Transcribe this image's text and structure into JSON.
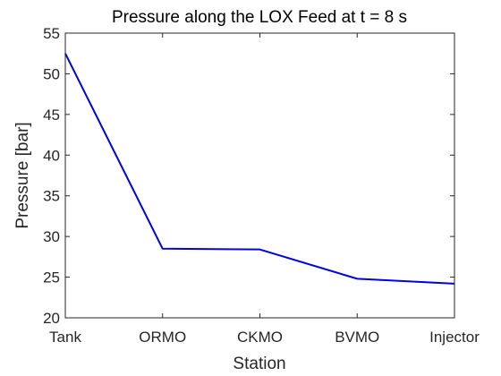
{
  "chart_data": {
    "type": "line",
    "title": "Pressure along the LOX Feed at t = 8 s",
    "xlabel": "Station",
    "ylabel": "Pressure [bar]",
    "categories": [
      "Tank",
      "ORMO",
      "CKMO",
      "BVMO",
      "Injector"
    ],
    "series": [
      {
        "values": [
          52.5,
          28.5,
          28.4,
          24.8,
          24.2
        ],
        "color": "#0000e6"
      }
    ],
    "ylim": [
      20,
      55
    ],
    "yticks": [
      "20",
      "25",
      "30",
      "35",
      "40",
      "45",
      "50",
      "55"
    ],
    "grid": false,
    "legend": "none"
  }
}
